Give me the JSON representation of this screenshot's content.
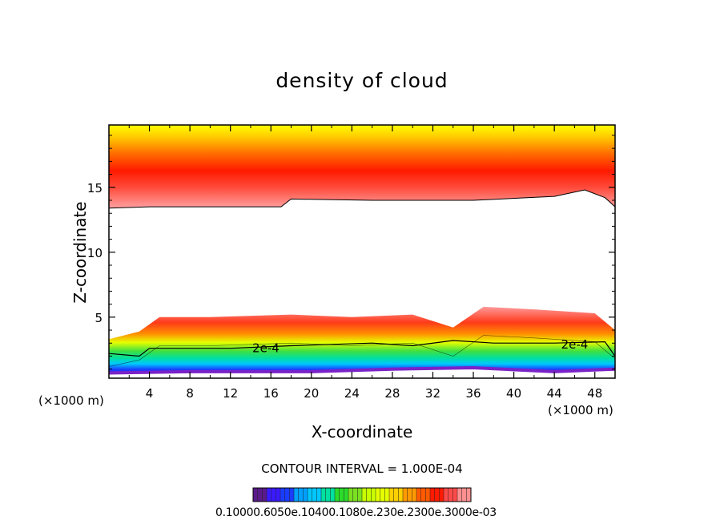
{
  "chart_data": {
    "type": "heatmap",
    "title": "density of cloud",
    "xlabel": "X-coordinate",
    "ylabel": "Z-coordinate",
    "x_unit_left": "(×1000 m)",
    "x_unit_right": "(×1000 m)",
    "xlim": [
      0,
      50
    ],
    "ylim": [
      0.3,
      19.8
    ],
    "x_ticks": [
      4,
      8,
      12,
      16,
      20,
      24,
      28,
      32,
      36,
      40,
      44,
      48
    ],
    "y_ticks": [
      5,
      10,
      15
    ],
    "contour_labels": [
      {
        "text": "2e-4",
        "x": 15.5,
        "z": 2.6
      },
      {
        "text": "2e-4",
        "x": 46.0,
        "z": 2.9
      }
    ],
    "contour_interval_text": "CONTOUR INTERVAL = 1.000E-04",
    "colorbar_labels": "0.10000.6050e.10400.1080e.230e.2300e.3000e-03",
    "upper_layer": {
      "bottom_z": [
        [
          0,
          13.4
        ],
        [
          4,
          13.5
        ],
        [
          10,
          13.5
        ],
        [
          17,
          13.5
        ],
        [
          18,
          14.1
        ],
        [
          26,
          14.0
        ],
        [
          36,
          14.0
        ],
        [
          44,
          14.3
        ],
        [
          47,
          14.8
        ],
        [
          49,
          14.2
        ],
        [
          50,
          13.5
        ]
      ],
      "core_z": 15.9,
      "top_z": 19.8
    },
    "lower_layer": {
      "top_z": [
        [
          0,
          3.3
        ],
        [
          3,
          3.9
        ],
        [
          5,
          5.0
        ],
        [
          10,
          5.0
        ],
        [
          18,
          5.2
        ],
        [
          24,
          5.0
        ],
        [
          30,
          5.2
        ],
        [
          34,
          4.2
        ],
        [
          37,
          5.8
        ],
        [
          42,
          5.6
        ],
        [
          48,
          5.3
        ],
        [
          50,
          4.0
        ]
      ],
      "contour_2e4_z": [
        [
          0,
          2.2
        ],
        [
          3,
          2.0
        ],
        [
          4,
          2.6
        ],
        [
          12,
          2.6
        ],
        [
          18,
          2.8
        ],
        [
          26,
          3.0
        ],
        [
          30,
          2.8
        ],
        [
          34,
          3.2
        ],
        [
          38,
          3.0
        ],
        [
          44,
          3.0
        ],
        [
          49,
          3.1
        ],
        [
          50,
          2.0
        ]
      ],
      "bottom_z": [
        [
          0,
          0.7
        ],
        [
          8,
          0.8
        ],
        [
          20,
          0.8
        ],
        [
          28,
          1.0
        ],
        [
          36,
          1.1
        ],
        [
          44,
          0.8
        ],
        [
          50,
          1.0
        ]
      ]
    },
    "colors": {
      "band_high": "#ffff00",
      "band_orange": "#ff9a00",
      "band_red": "#ff1a00",
      "band_pink": "#ff9090",
      "lower_red": "#ff3a1a",
      "lower_yellow": "#e6ff00",
      "lower_green": "#2bdc2b",
      "lower_cyan": "#00c8ff",
      "lower_blue": "#1a3cff",
      "lower_purple": "#7a22c8"
    }
  }
}
